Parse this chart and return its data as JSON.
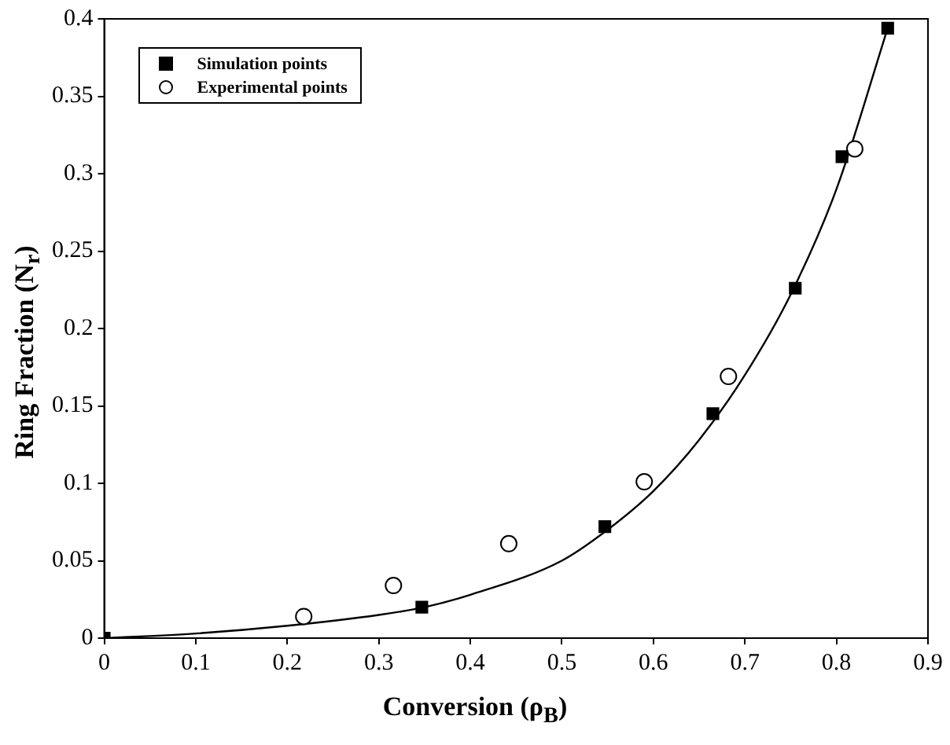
{
  "chart_data": {
    "type": "scatter",
    "xlabel": "Conversion (ρ$_{B}$)",
    "ylabel": "Ring Fraction (N$_{r}$)",
    "xlim": [
      0,
      0.9
    ],
    "xticks": [
      0,
      0.1,
      0.2,
      0.3,
      0.4,
      0.5,
      0.6,
      0.7,
      0.8,
      0.9
    ],
    "ylim": [
      0,
      0.4
    ],
    "yticks": [
      0,
      0.05,
      0.1,
      0.15,
      0.2,
      0.25,
      0.3,
      0.35,
      0.4
    ],
    "grid": false,
    "legend": "top left",
    "series": [
      {
        "name": "Simulation points",
        "type": "scatter",
        "marker": "square",
        "color": "#000000",
        "x": [
          0,
          0.347,
          0.547,
          0.665,
          0.755,
          0.806,
          0.856
        ],
        "values": [
          0,
          0.02,
          0.072,
          0.145,
          0.226,
          0.311,
          0.394
        ]
      },
      {
        "name": "Experimental points",
        "type": "scatter",
        "marker": "circle",
        "color": "#000000",
        "x": [
          0.218,
          0.316,
          0.442,
          0.59,
          0.682,
          0.82
        ],
        "values": [
          0.014,
          0.034,
          0.061,
          0.101,
          0.169,
          0.316
        ]
      },
      {
        "type": "line",
        "marker": "none",
        "color": "#000000",
        "x": [
          0,
          0.1,
          0.2,
          0.3,
          0.35,
          0.4,
          0.5,
          0.55,
          0.6,
          0.65,
          0.7,
          0.75,
          0.8,
          0.856
        ],
        "values": [
          0,
          0.003,
          0.008,
          0.015,
          0.02,
          0.028,
          0.05,
          0.07,
          0.095,
          0.128,
          0.17,
          0.222,
          0.29,
          0.394
        ]
      }
    ]
  }
}
